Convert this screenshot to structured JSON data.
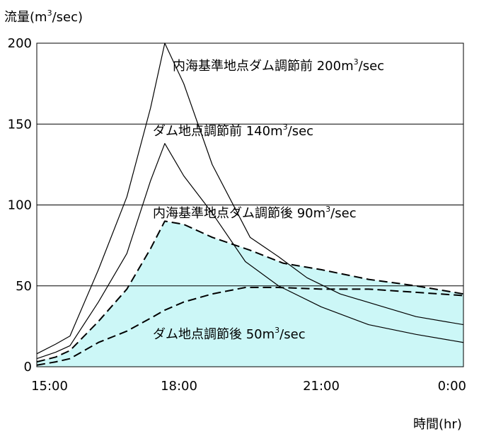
{
  "chart_data": {
    "type": "line",
    "ylabel": {
      "main": "流量(m",
      "sup": "3",
      "tail": "/sec)"
    },
    "xlabel": "時間(hr)",
    "ylim": [
      0,
      200
    ],
    "xlim": [
      15,
      24
    ],
    "y_ticks": [
      0,
      50,
      100,
      150,
      200
    ],
    "x_ticks": [
      {
        "value": 15,
        "label": "15:00"
      },
      {
        "value": 18,
        "label": "18:00"
      },
      {
        "value": 21,
        "label": "21:00"
      },
      {
        "value": 24,
        "label": "0:00"
      }
    ],
    "gridlines_y": [
      50,
      100,
      150
    ],
    "fill_color": "#ccf7f7",
    "series": [
      {
        "key": "uchiumi_before",
        "style": "solid",
        "x": [
          15,
          15.4,
          15.7,
          16.3,
          16.9,
          17.4,
          17.7,
          18.1,
          18.7,
          19.5,
          20.1,
          20.7,
          21.4,
          22.2,
          23.0,
          24.0
        ],
        "values": [
          8,
          14,
          19,
          60,
          105,
          160,
          200,
          175,
          125,
          80,
          68,
          55,
          45,
          38,
          31,
          26
        ]
      },
      {
        "key": "dam_before",
        "style": "solid",
        "x": [
          15,
          15.4,
          15.7,
          16.3,
          16.9,
          17.4,
          17.7,
          18.1,
          18.7,
          19.4,
          20.1,
          21.0,
          22.0,
          23.0,
          24.0
        ],
        "values": [
          5,
          9,
          13,
          40,
          70,
          115,
          138,
          118,
          95,
          65,
          50,
          37,
          26,
          20,
          15
        ]
      },
      {
        "key": "uchiumi_after",
        "style": "dashed",
        "x": [
          15,
          15.4,
          15.7,
          16.3,
          16.9,
          17.4,
          17.7,
          18.1,
          18.7,
          19.5,
          20.2,
          21.0,
          22.0,
          23.0,
          24.0
        ],
        "values": [
          3,
          6,
          10,
          28,
          48,
          73,
          90,
          88,
          80,
          72,
          64,
          60,
          54,
          50,
          45
        ]
      },
      {
        "key": "dam_after",
        "style": "dashed",
        "x": [
          15,
          15.4,
          15.7,
          16.3,
          16.9,
          17.4,
          17.7,
          18.1,
          18.7,
          19.4,
          20.1,
          21.0,
          22.0,
          23.0,
          24.0
        ],
        "values": [
          1,
          3,
          5,
          15,
          22,
          30,
          35,
          40,
          45,
          49,
          49,
          48,
          48,
          46,
          44
        ]
      }
    ],
    "annotations": [
      {
        "main": "内海基準地点ダム調節前 200m",
        "sup": "3",
        "tail": "/sec"
      },
      {
        "main": "ダム地点調節前 140m",
        "sup": "3",
        "tail": "/sec"
      },
      {
        "main": "内海基準地点ダム調節後 90m",
        "sup": "3",
        "tail": "/sec"
      },
      {
        "main": "ダム地点調節後 50m",
        "sup": "3",
        "tail": "/sec"
      }
    ]
  }
}
